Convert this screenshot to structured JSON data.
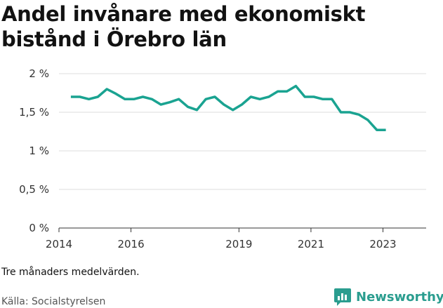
{
  "title": "Andel invånare med ekonomiskt bistånd i Örebro län",
  "note": "Tre månaders medelvärden.",
  "source": "Källa: Socialstyrelsen",
  "brand": {
    "name": "Newsworthy",
    "icon": "newsworthy-logo-icon",
    "color": "#2a9d8f"
  },
  "chart_data": {
    "type": "line",
    "title": "Andel invånare med ekonomiskt bistånd i Örebro län",
    "xlabel": "",
    "ylabel": "",
    "ylim": [
      0,
      2
    ],
    "y_ticks": [
      {
        "value": 0,
        "label": "0 %"
      },
      {
        "value": 0.5,
        "label": "0,5 %"
      },
      {
        "value": 1,
        "label": "1 %"
      },
      {
        "value": 1.5,
        "label": "1,5 %"
      },
      {
        "value": 2,
        "label": "2 %"
      }
    ],
    "xlim": [
      2014,
      2024.2
    ],
    "x_ticks": [
      {
        "value": 2014,
        "label": "2014"
      },
      {
        "value": 2016,
        "label": "2016"
      },
      {
        "value": 2019,
        "label": "2019"
      },
      {
        "value": 2021,
        "label": "2021"
      },
      {
        "value": 2023,
        "label": "2023"
      }
    ],
    "grid": true,
    "color": "#1aa391",
    "series": [
      {
        "x": [
          2014.33,
          2014.58,
          2014.83,
          2015.08,
          2015.33,
          2015.58,
          2015.83,
          2016.08,
          2016.33,
          2016.58,
          2016.83,
          2017.08,
          2017.33,
          2017.58,
          2017.83,
          2018.08,
          2018.33,
          2018.58,
          2018.83,
          2019.08,
          2019.33,
          2019.58,
          2019.83,
          2020.08,
          2020.33,
          2020.58,
          2020.83,
          2021.08,
          2021.33,
          2021.58,
          2021.83,
          2022.08,
          2022.33,
          2022.58,
          2022.83,
          2023.08
        ],
        "values": [
          1.7,
          1.7,
          1.67,
          1.7,
          1.8,
          1.74,
          1.67,
          1.67,
          1.7,
          1.67,
          1.6,
          1.63,
          1.67,
          1.57,
          1.53,
          1.67,
          1.7,
          1.6,
          1.53,
          1.6,
          1.7,
          1.67,
          1.7,
          1.77,
          1.77,
          1.84,
          1.7,
          1.7,
          1.67,
          1.67,
          1.5,
          1.5,
          1.47,
          1.4,
          1.27,
          1.27
        ]
      }
    ]
  }
}
